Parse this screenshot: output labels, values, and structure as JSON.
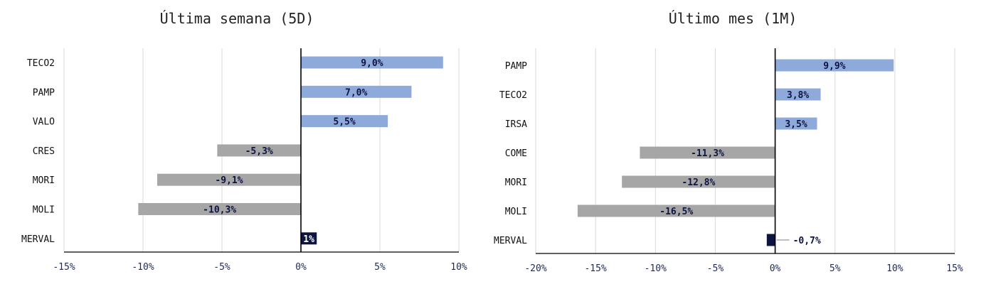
{
  "chart_data": [
    {
      "type": "bar",
      "orientation": "horizontal",
      "title": "Última semana (5D)",
      "categories": [
        "TECO2",
        "PAMP",
        "VALO",
        "CRES",
        "MORI",
        "MOLI",
        "MERVAL"
      ],
      "values": [
        9.0,
        7.0,
        5.5,
        -5.3,
        -9.1,
        -10.3,
        1.0
      ],
      "data_labels": [
        "9,0%",
        "7,0%",
        "5,5%",
        "-5,3%",
        "-9,1%",
        "-10,3%",
        "1%"
      ],
      "xlim": [
        -15,
        10
      ],
      "xticks": [
        -15,
        -10,
        -5,
        0,
        5,
        10
      ],
      "xtick_labels": [
        "-15%",
        "-10%",
        "-5%",
        "0%",
        "5%",
        "10%"
      ],
      "grid": true,
      "colors": {
        "positive": "#8eaadb",
        "negative": "#a6a6a6",
        "index": "#0d1440"
      }
    },
    {
      "type": "bar",
      "orientation": "horizontal",
      "title": "Último mes (1M)",
      "categories": [
        "PAMP",
        "TECO2",
        "IRSA",
        "COME",
        "MORI",
        "MOLI",
        "MERVAL"
      ],
      "values": [
        9.9,
        3.8,
        3.5,
        -11.3,
        -12.8,
        -16.5,
        -0.7
      ],
      "data_labels": [
        "9,9%",
        "3,8%",
        "3,5%",
        "-11,3%",
        "-12,8%",
        "-16,5%",
        "-0,7%"
      ],
      "xlim": [
        -20,
        15
      ],
      "xticks": [
        -20,
        -15,
        -10,
        -5,
        0,
        5,
        10,
        15
      ],
      "xtick_labels": [
        "-20%",
        "-15%",
        "-10%",
        "-5%",
        "0%",
        "5%",
        "10%",
        "15%"
      ],
      "grid": true,
      "colors": {
        "positive": "#8eaadb",
        "negative": "#a6a6a6",
        "index": "#0d1440"
      }
    }
  ]
}
